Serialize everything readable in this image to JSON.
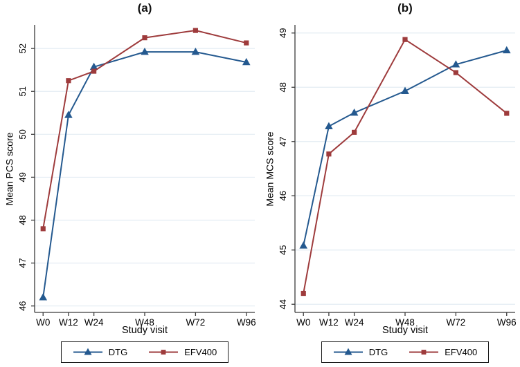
{
  "figure": {
    "colors": {
      "dtg": "#24598f",
      "efv400": "#9e3b3c",
      "grid": "#e3ecf3",
      "axis": "#3a3a3a",
      "text": "#000000",
      "legend_border": "#1a1a1a",
      "background": "#ffffff"
    }
  },
  "chart_data": [
    {
      "type": "line",
      "title": "(a)",
      "ylabel": "Mean PCS score",
      "xlabel": "Study visit",
      "categories": [
        "W0",
        "W12",
        "W24",
        "W48",
        "W72",
        "W96"
      ],
      "x_weeks": [
        0,
        12,
        24,
        48,
        72,
        96
      ],
      "yticks": [
        46,
        47,
        48,
        49,
        50,
        51,
        52
      ],
      "ylim": [
        45.85,
        52.55
      ],
      "grid": true,
      "legend_position": "bottom",
      "series": [
        {
          "name": "DTG",
          "marker": "triangle",
          "color": "#24598f",
          "values": [
            46.2,
            50.45,
            51.57,
            51.92,
            51.92,
            51.68
          ]
        },
        {
          "name": "EFV400",
          "marker": "square",
          "color": "#9e3b3c",
          "values": [
            47.8,
            51.25,
            51.47,
            52.25,
            52.42,
            52.13
          ]
        }
      ]
    },
    {
      "type": "line",
      "title": "(b)",
      "ylabel": "Mean MCS score",
      "xlabel": "Study visit",
      "categories": [
        "W0",
        "W12",
        "W24",
        "W48",
        "W72",
        "W96"
      ],
      "x_weeks": [
        0,
        12,
        24,
        48,
        72,
        96
      ],
      "yticks": [
        44,
        45,
        46,
        47,
        48,
        49
      ],
      "ylim": [
        43.85,
        49.15
      ],
      "grid": true,
      "legend_position": "bottom",
      "series": [
        {
          "name": "DTG",
          "marker": "triangle",
          "color": "#24598f",
          "values": [
            45.08,
            47.28,
            47.53,
            47.93,
            48.42,
            48.68
          ]
        },
        {
          "name": "EFV400",
          "marker": "square",
          "color": "#9e3b3c",
          "values": [
            44.2,
            46.77,
            47.17,
            48.88,
            48.27,
            47.52
          ]
        }
      ]
    }
  ]
}
